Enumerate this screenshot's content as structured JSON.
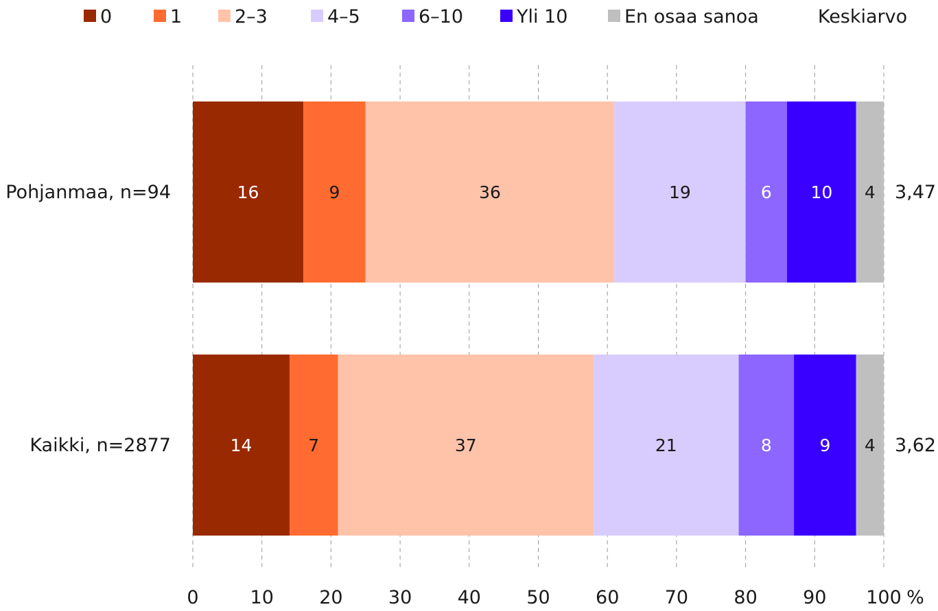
{
  "chart_data": {
    "type": "bar",
    "orientation": "horizontal",
    "stacked": true,
    "categories": [
      "Pohjanmaa, n=94",
      "Kaikki, n=2877"
    ],
    "series": [
      {
        "name": "0",
        "values": [
          16,
          14
        ],
        "color": "#992900",
        "text_color": "#ffffff"
      },
      {
        "name": "1",
        "values": [
          9,
          7
        ],
        "color": "#ff6b30",
        "text_color": "#1a1a1a"
      },
      {
        "name": "2–3",
        "values": [
          36,
          37
        ],
        "color": "#ffc3aa",
        "text_color": "#1a1a1a"
      },
      {
        "name": "4–5",
        "values": [
          19,
          21
        ],
        "color": "#d8ccff",
        "text_color": "#1a1a1a"
      },
      {
        "name": "6–10",
        "values": [
          6,
          8
        ],
        "color": "#8c66ff",
        "text_color": "#ffffff"
      },
      {
        "name": "Yli 10",
        "values": [
          10,
          9
        ],
        "color": "#3a00ff",
        "text_color": "#ffffff"
      },
      {
        "name": "En osaa sanoa",
        "values": [
          4,
          4
        ],
        "color": "#bfbfbf",
        "text_color": "#1a1a1a"
      }
    ],
    "averages_header": "Keskiarvo",
    "averages": [
      "3,47",
      "3,62"
    ],
    "x_ticks": [
      "0",
      "10",
      "20",
      "30",
      "40",
      "50",
      "60",
      "70",
      "80",
      "90",
      "100"
    ],
    "xlim": [
      0,
      100
    ],
    "x_unit": "%",
    "grid": "vertical dashed",
    "legend_position": "top"
  }
}
